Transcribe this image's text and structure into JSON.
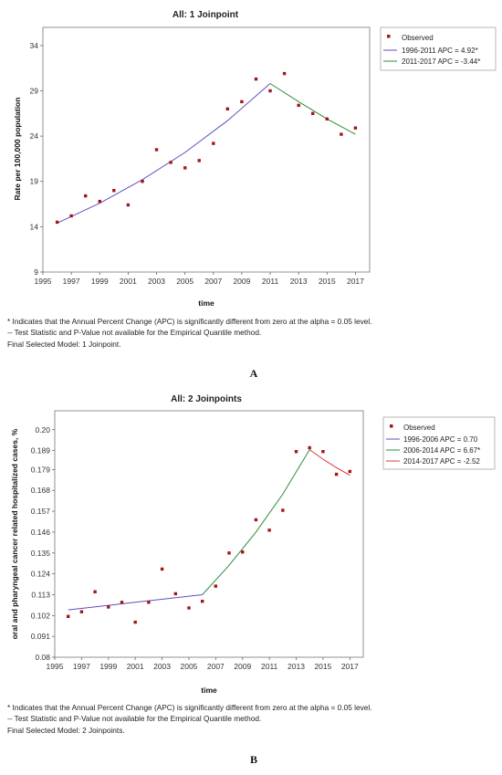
{
  "chart_data": [
    {
      "type": "scatter",
      "title": "All: 1 Joinpoint",
      "xlabel": "time",
      "ylabel": "Rate per 100,000 population",
      "xlim": [
        1995,
        2018
      ],
      "ylim": [
        9,
        36
      ],
      "x_ticks": [
        1995,
        1997,
        1999,
        2001,
        2003,
        2005,
        2007,
        2009,
        2011,
        2013,
        2015,
        2017
      ],
      "y_ticks": [
        9,
        14,
        19,
        24,
        29,
        34
      ],
      "y_tick_labels": [
        "9",
        "14",
        "19",
        "24",
        "29",
        "34"
      ],
      "legend_position": "right",
      "observed": {
        "name": "Observed",
        "color": "#a31515",
        "x": [
          1996,
          1997,
          1998,
          1999,
          2000,
          2001,
          2002,
          2003,
          2004,
          2005,
          2006,
          2007,
          2008,
          2009,
          2010,
          2011,
          2012,
          2013,
          2014,
          2015,
          2016,
          2017
        ],
        "y": [
          14.5,
          15.2,
          17.4,
          16.8,
          18.0,
          16.4,
          19.0,
          22.5,
          21.1,
          20.5,
          21.3,
          23.2,
          27.0,
          27.8,
          30.3,
          29.0,
          30.9,
          27.4,
          26.5,
          25.9,
          24.2,
          24.9
        ]
      },
      "series": [
        {
          "name": "1996-2011 APC =  4.92*",
          "color": "#5f4fbf",
          "x": [
            1996,
            1999,
            2002,
            2005,
            2008,
            2011
          ],
          "y": [
            14.4,
            16.6,
            19.2,
            22.2,
            25.7,
            29.8
          ]
        },
        {
          "name": "2011-2017 APC = -3.44*",
          "color": "#2e8b3c",
          "x": [
            2011,
            2013,
            2015,
            2017
          ],
          "y": [
            29.8,
            27.8,
            25.9,
            24.2
          ]
        }
      ],
      "footnotes": [
        "* Indicates that the Annual Percent Change (APC) is significantly different from zero at the alpha = 0.05 level.",
        "-- Test Statistic and P-Value not available for the Empirical Quantile method.",
        "Final Selected Model: 1 Joinpoint."
      ],
      "panel_label": "A"
    },
    {
      "type": "scatter",
      "title": "All: 2 Joinpoints",
      "xlabel": "time",
      "ylabel": "oral and pharyngeal cancer related hospitalized cases, %",
      "xlim": [
        1995,
        2018
      ],
      "ylim": [
        0.08,
        0.21
      ],
      "x_ticks": [
        1995,
        1997,
        1999,
        2001,
        2003,
        2005,
        2007,
        2009,
        2011,
        2013,
        2015,
        2017
      ],
      "y_ticks": [
        0.08,
        0.091,
        0.102,
        0.113,
        0.124,
        0.135,
        0.146,
        0.157,
        0.168,
        0.179,
        0.189,
        0.2
      ],
      "y_tick_labels": [
        "0.08",
        "0.091",
        "0.102",
        "0.113",
        "0.124",
        "0.135",
        "0.146",
        "0.157",
        "0.168",
        "0.179",
        "0.189",
        "0.20"
      ],
      "legend_position": "right",
      "observed": {
        "name": "Observed",
        "color": "#a31515",
        "x": [
          1996,
          1997,
          1998,
          1999,
          2000,
          2001,
          2002,
          2003,
          2004,
          2005,
          2006,
          2007,
          2008,
          2009,
          2010,
          2011,
          2012,
          2013,
          2014,
          2015,
          2016,
          2017
        ],
        "y": [
          0.1015,
          0.104,
          0.1145,
          0.1065,
          0.109,
          0.0985,
          0.109,
          0.1265,
          0.1135,
          0.106,
          0.1095,
          0.1175,
          0.135,
          0.1355,
          0.1525,
          0.147,
          0.1575,
          0.1885,
          0.1905,
          0.1885,
          0.1765,
          0.178
        ]
      },
      "series": [
        {
          "name": "1996-2006 APC =  0.70",
          "color": "#5f4fbf",
          "x": [
            1996,
            2001,
            2006
          ],
          "y": [
            0.105,
            0.109,
            0.113
          ]
        },
        {
          "name": "2006-2014 APC = 6.67*",
          "color": "#2e8b3c",
          "x": [
            2006,
            2008,
            2010,
            2012,
            2014
          ],
          "y": [
            0.113,
            0.1285,
            0.146,
            0.166,
            0.1895
          ]
        },
        {
          "name": "2014-2017 APC = -2.52",
          "color": "#d9393c",
          "x": [
            2014,
            2015,
            2016,
            2017
          ],
          "y": [
            0.1895,
            0.1845,
            0.18,
            0.176
          ]
        }
      ],
      "footnotes": [
        "* Indicates that the Annual Percent Change (APC) is significantly different from zero at the alpha = 0.05 level.",
        "-- Test Statistic and P-Value not available for the Empirical Quantile method.",
        "Final Selected Model: 2 Joinpoints."
      ],
      "panel_label": "B"
    }
  ]
}
